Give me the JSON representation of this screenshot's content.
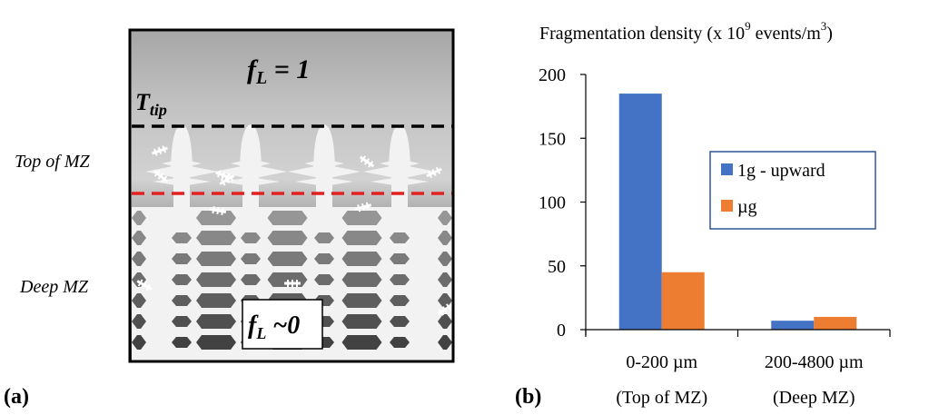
{
  "panel_a": {
    "label": "(a)",
    "fl_top_main": "f",
    "fl_top_sub": "L",
    "fl_top_rest": " = 1",
    "ttip_main": "T",
    "ttip_sub": "tip",
    "top_mz": "Top of MZ",
    "deep_mz": "Deep MZ",
    "fl_bottom_main": "f",
    "fl_bottom_sub": "L",
    "fl_bottom_rest": " ~0",
    "colors": {
      "ttip_line": "#000000",
      "mz_line": "#e32020"
    }
  },
  "panel_b": {
    "label": "(b)",
    "category_sublabels": [
      "(Top of MZ)",
      "(Deep MZ)"
    ]
  },
  "chart_data": {
    "type": "bar",
    "title": "Fragmentation density (x 10",
    "title_sup1": "9",
    "title_mid": " events/m",
    "title_sup2": "3",
    "title_end": ")",
    "categories": [
      "0-200 µm",
      "200-4800 µm"
    ],
    "series": [
      {
        "name": "1g - upward",
        "values": [
          185,
          7
        ],
        "color": "#4472c4"
      },
      {
        "name": "µg",
        "values": [
          45,
          10
        ],
        "color": "#ed7d31"
      }
    ],
    "ylim": [
      0,
      200
    ],
    "yticks": [
      "0",
      "50",
      "100",
      "150",
      "200"
    ],
    "ytick_values": [
      0,
      50,
      100,
      150,
      200
    ],
    "grid": false,
    "legend_position": "right",
    "legend_border_color": "#2f5597"
  }
}
